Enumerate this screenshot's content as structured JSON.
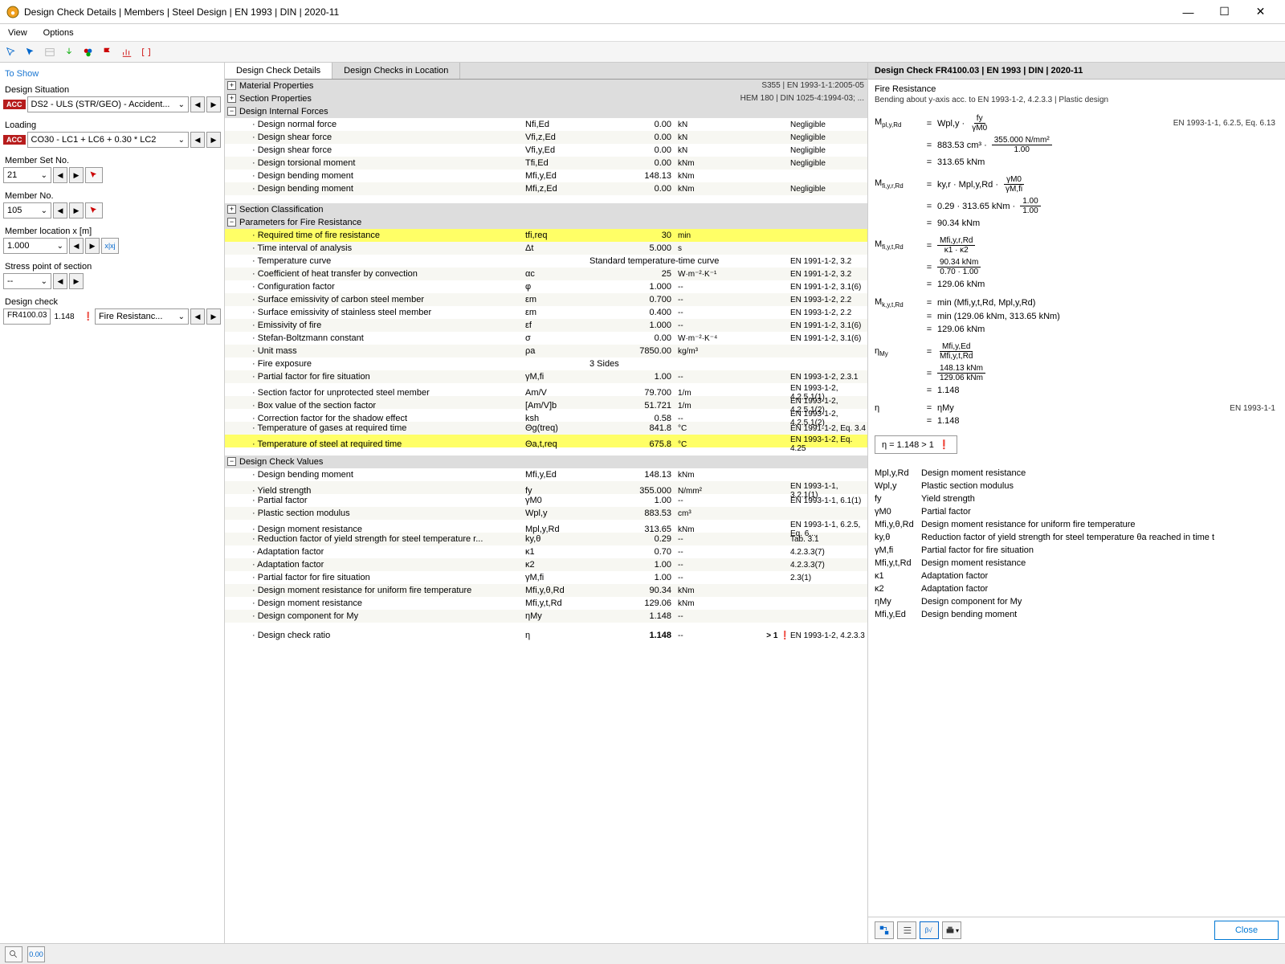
{
  "window": {
    "title": "Design Check Details | Members | Steel Design | EN 1993 | DIN | 2020-11"
  },
  "menu": {
    "view": "View",
    "options": "Options"
  },
  "left": {
    "toshow": "To Show",
    "ds_label": "Design Situation",
    "ds_value": "DS2 - ULS (STR/GEO) - Accident...",
    "loading_label": "Loading",
    "loading_value": "CO30 - LC1 + LC6 + 0.30 * LC2",
    "acc": "ACC",
    "memberset_label": "Member Set No.",
    "memberset_value": "21",
    "member_label": "Member No.",
    "member_value": "105",
    "memberloc_label": "Member location x [m]",
    "memberloc_value": "1.000",
    "xiXj": "x|xj",
    "stress_label": "Stress point of section",
    "stress_value": "--",
    "dcheck_label": "Design check",
    "dcheck_code": "FR4100.03",
    "dcheck_ratio": "1.148",
    "dcheck_type": "Fire Resistanc..."
  },
  "tabs": {
    "a": "Design Check Details",
    "b": "Design Checks in Location"
  },
  "groups": {
    "matprops": "Material Properties",
    "matprops_r": "S355 | EN 1993-1-1:2005-05",
    "secprops": "Section Properties",
    "secprops_r": "HEM 180 | DIN 1025-4:1994-03; ...",
    "dif": "Design Internal Forces",
    "secclass": "Section Classification",
    "fireparams": "Parameters for Fire Resistance",
    "dcv": "Design Check Values"
  },
  "dif_rows": [
    {
      "n": "Design normal force",
      "s": "Nfi,Ed",
      "v": "0.00",
      "u": "kN",
      "r": "Negligible"
    },
    {
      "n": "Design shear force",
      "s": "Vfi,z,Ed",
      "v": "0.00",
      "u": "kN",
      "r": "Negligible"
    },
    {
      "n": "Design shear force",
      "s": "Vfi,y,Ed",
      "v": "0.00",
      "u": "kN",
      "r": "Negligible"
    },
    {
      "n": "Design torsional moment",
      "s": "Tfi,Ed",
      "v": "0.00",
      "u": "kNm",
      "r": "Negligible"
    },
    {
      "n": "Design bending moment",
      "s": "Mfi,y,Ed",
      "v": "148.13",
      "u": "kNm",
      "r": ""
    },
    {
      "n": "Design bending moment",
      "s": "Mfi,z,Ed",
      "v": "0.00",
      "u": "kNm",
      "r": "Negligible"
    }
  ],
  "fire_rows": [
    {
      "n": "Required time of fire resistance",
      "s": "tfi,req",
      "v": "30",
      "u": "min",
      "r": "",
      "hl": true
    },
    {
      "n": "Time interval of analysis",
      "s": "Δt",
      "v": "5.000",
      "u": "s",
      "r": ""
    },
    {
      "n": "Temperature curve",
      "s": "",
      "v": "Standard temperature-time curve",
      "u": "",
      "r": "EN 1991-1-2, 3.2",
      "wide": true
    },
    {
      "n": "Coefficient of heat transfer by convection",
      "s": "αc",
      "v": "25",
      "u": "W·m⁻²·K⁻¹",
      "r": "EN 1991-1-2, 3.2"
    },
    {
      "n": "Configuration factor",
      "s": "φ",
      "v": "1.000",
      "u": "--",
      "r": "EN 1991-1-2, 3.1(6)"
    },
    {
      "n": "Surface emissivity of carbon steel member",
      "s": "εm",
      "v": "0.700",
      "u": "--",
      "r": "EN 1993-1-2, 2.2"
    },
    {
      "n": "Surface emissivity of stainless steel member",
      "s": "εm",
      "v": "0.400",
      "u": "--",
      "r": "EN 1993-1-2, 2.2"
    },
    {
      "n": "Emissivity of fire",
      "s": "εf",
      "v": "1.000",
      "u": "--",
      "r": "EN 1991-1-2, 3.1(6)"
    },
    {
      "n": "Stefan-Boltzmann constant",
      "s": "σ",
      "v": "0.00",
      "u": "W·m⁻²·K⁻⁴",
      "r": "EN 1991-1-2, 3.1(6)"
    },
    {
      "n": "Unit mass",
      "s": "ρa",
      "v": "7850.00",
      "u": "kg/m³",
      "r": ""
    },
    {
      "n": "Fire exposure",
      "s": "",
      "v": "3 Sides",
      "u": "",
      "r": "",
      "wide": true
    },
    {
      "n": "Partial factor for fire situation",
      "s": "γM,fi",
      "v": "1.00",
      "u": "--",
      "r": "EN 1993-1-2, 2.3.1"
    },
    {
      "n": "Section factor for unprotected steel member",
      "s": "Am/V",
      "v": "79.700",
      "u": "1/m",
      "r": "EN 1993-1-2, 4.2.5.1(1)"
    },
    {
      "n": "Box value of the section factor",
      "s": "[Am/V]b",
      "v": "51.721",
      "u": "1/m",
      "r": "EN 1993-1-2, 4.2.5.1(2)"
    },
    {
      "n": "Correction factor for the shadow effect",
      "s": "ksh",
      "v": "0.58",
      "u": "--",
      "r": "EN 1993-1-2, 4.2.5.1(2)"
    },
    {
      "n": "Temperature of gases at required time",
      "s": "Θg(treq)",
      "v": "841.8",
      "u": "°C",
      "r": "EN 1991-1-2, Eq. 3.4"
    },
    {
      "n": "Temperature of steel at required time",
      "s": "Θa,t,req",
      "v": "675.8",
      "u": "°C",
      "r": "EN 1993-1-2, Eq. 4.25",
      "hl": true
    }
  ],
  "dcv_rows": [
    {
      "n": "Design bending moment",
      "s": "Mfi,y,Ed",
      "v": "148.13",
      "u": "kNm",
      "r": ""
    },
    {
      "n": "Yield strength",
      "s": "fy",
      "v": "355.000",
      "u": "N/mm²",
      "r": "EN 1993-1-1, 3.2.1(1)"
    },
    {
      "n": "Partial factor",
      "s": "γM0",
      "v": "1.00",
      "u": "--",
      "r": "EN 1993-1-1, 6.1(1)"
    },
    {
      "n": "Plastic section modulus",
      "s": "Wpl,y",
      "v": "883.53",
      "u": "cm³",
      "r": ""
    },
    {
      "n": "Design moment resistance",
      "s": "Mpl,y,Rd",
      "v": "313.65",
      "u": "kNm",
      "r": "EN 1993-1-1, 6.2.5, Eq. 6...."
    },
    {
      "n": "Reduction factor of yield strength for steel temperature r...",
      "s": "ky,θ",
      "v": "0.29",
      "u": "--",
      "r": "Tab. 3.1"
    },
    {
      "n": "Adaptation factor",
      "s": "κ1",
      "v": "0.70",
      "u": "--",
      "r": "4.2.3.3(7)"
    },
    {
      "n": "Adaptation factor",
      "s": "κ2",
      "v": "1.00",
      "u": "--",
      "r": "4.2.3.3(7)"
    },
    {
      "n": "Partial factor for fire situation",
      "s": "γM,fi",
      "v": "1.00",
      "u": "--",
      "r": "2.3(1)"
    },
    {
      "n": "Design moment resistance for uniform fire temperature",
      "s": "Mfi,y,θ,Rd",
      "v": "90.34",
      "u": "kNm",
      "r": ""
    },
    {
      "n": "Design moment resistance",
      "s": "Mfi,y,t,Rd",
      "v": "129.06",
      "u": "kNm",
      "r": ""
    },
    {
      "n": "Design component for My",
      "s": "ηMy",
      "v": "1.148",
      "u": "--",
      "r": ""
    }
  ],
  "ratio": {
    "n": "Design check ratio",
    "s": "η",
    "v": "1.148",
    "u": "--",
    "flag": "> 1",
    "r": "EN 1993-1-2, 4.2.3.3"
  },
  "right": {
    "title": "Design Check FR4100.03 | EN 1993 | DIN | 2020-11",
    "sub": "Fire Resistance",
    "desc": "Bending about y-axis acc. to EN 1993-1-2, 4.2.3.3 | Plastic design",
    "ref1": "EN 1993-1-1, 6.2.5, Eq. 6.13",
    "ref2": "EN 1993-1-1",
    "eq1_lhs": "Mpl,y,Rd",
    "eq1_rhs": "Wpl,y ·",
    "eq1_num": "fy",
    "eq1_den": "γM0",
    "eq1b_rhs": "883.53 cm³ ·",
    "eq1b_num": "355.000 N/mm²",
    "eq1b_den": "1.00",
    "eq1c": "313.65 kNm",
    "eq2_lhs": "Mfi,y,r,Rd",
    "eq2_rhs": "ky,r · Mpl,y,Rd ·",
    "eq2_num": "γM0",
    "eq2_den": "γM,fi",
    "eq2b_rhs": "0.29 · 313.65 kNm ·",
    "eq2b_num": "1.00",
    "eq2b_den": "1.00",
    "eq2c": "90.34 kNm",
    "eq3_lhs": "Mfi,y,t,Rd",
    "eq3_num": "Mfi,y,r,Rd",
    "eq3_den": "κ1 · κ2",
    "eq3b_num": "90.34 kNm",
    "eq3b_den": "0.70 · 1.00",
    "eq3c": "129.06 kNm",
    "eq4_lhs": "M k,y,t,Rd",
    "eq4_rhs": "min (Mfi,y,t,Rd, Mpl,y,Rd)",
    "eq4b": "min (129.06 kNm, 313.65 kNm)",
    "eq4c": "129.06 kNm",
    "eq5_lhs": "ηMy",
    "eq5_num": "Mfi,y,Ed",
    "eq5_den": "Mfi,y,t,Rd",
    "eq5b_num": "148.13 kNm",
    "eq5b_den": "129.06 kNm",
    "eq5c": "1.148",
    "eq6_lhs": "η",
    "eq6_rhs": "ηMy",
    "eq6b": "1.148",
    "result": "η   =   1.148  > 1",
    "legend": [
      {
        "s": "Mpl,y,Rd",
        "d": "Design moment resistance"
      },
      {
        "s": "Wpl,y",
        "d": "Plastic section modulus"
      },
      {
        "s": "fy",
        "d": "Yield strength"
      },
      {
        "s": "γM0",
        "d": "Partial factor"
      },
      {
        "s": "Mfi,y,θ,Rd",
        "d": "Design moment resistance for uniform fire temperature"
      },
      {
        "s": "ky,θ",
        "d": "Reduction factor of yield strength for steel temperature θa reached in time t"
      },
      {
        "s": "γM,fi",
        "d": "Partial factor for fire situation"
      },
      {
        "s": "Mfi,y,t,Rd",
        "d": "Design moment resistance"
      },
      {
        "s": "κ1",
        "d": "Adaptation factor"
      },
      {
        "s": "κ2",
        "d": "Adaptation factor"
      },
      {
        "s": "ηMy",
        "d": "Design component for My"
      },
      {
        "s": "Mfi,y,Ed",
        "d": "Design bending moment"
      }
    ],
    "close": "Close"
  }
}
